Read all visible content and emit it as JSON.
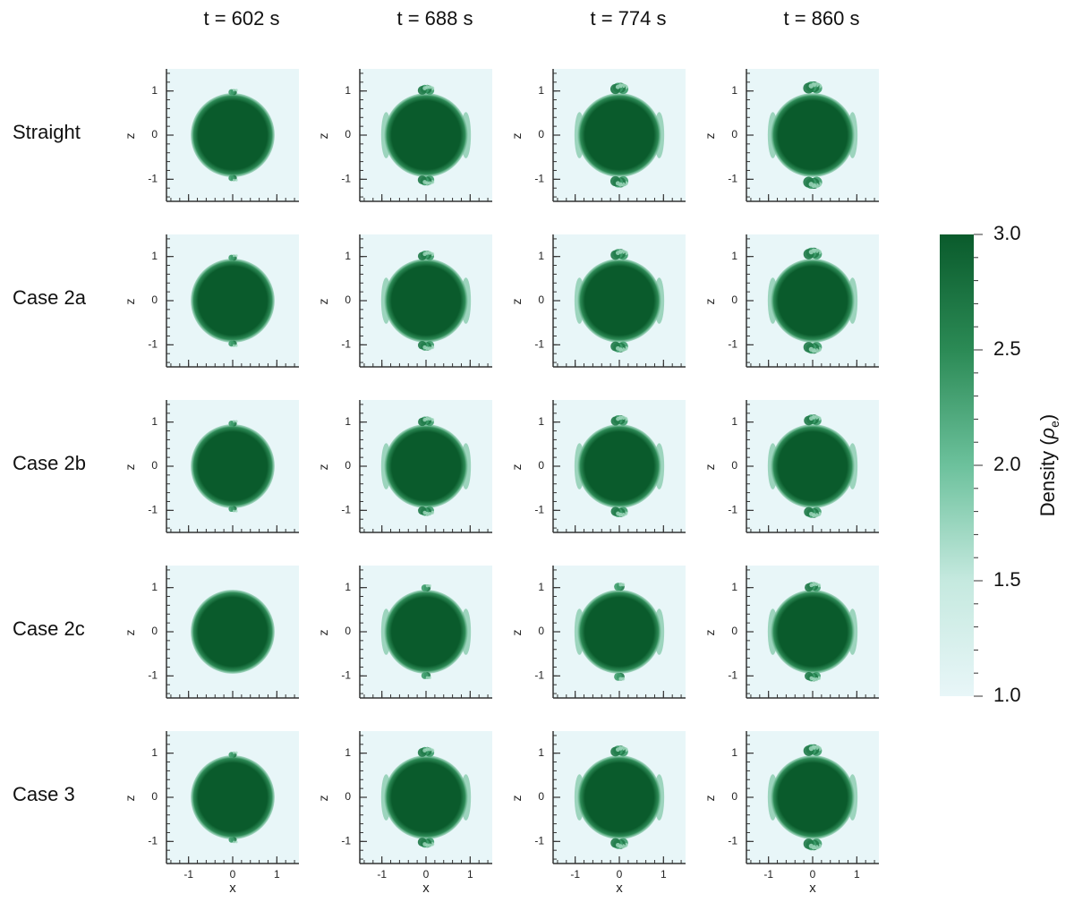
{
  "chart_data": {
    "type": "heatmap",
    "columns": [
      "t = 602 s",
      "t = 688 s",
      "t = 774 s",
      "t = 860 s"
    ],
    "rows": [
      "Straight",
      "Case 2a",
      "Case 2b",
      "Case 2c",
      "Case 3"
    ],
    "xlabel": "x",
    "ylabel": "z",
    "xlim": [
      -1.5,
      1.5
    ],
    "ylim": [
      -1.5,
      1.5
    ],
    "x_ticks": [
      "-1",
      "0",
      "1"
    ],
    "y_ticks": [
      "1",
      "0",
      "-1"
    ],
    "colorbar": {
      "label_main": "Density (",
      "label_sym": "ρ",
      "label_sub": "e",
      "label_end": ")",
      "min": 1.0,
      "max": 3.0,
      "ticks": [
        "3.0",
        "2.5",
        "2.0",
        "1.5",
        "1.0"
      ],
      "color_low": "#e8f6f8",
      "color_high": "#0a5b2c"
    },
    "tube_radius": 0.95,
    "core_density": 3.0,
    "background_density": 1.0,
    "perturbation": [
      [
        0.12,
        0.45,
        0.6,
        0.7
      ],
      [
        0.12,
        0.42,
        0.55,
        0.65
      ],
      [
        0.1,
        0.4,
        0.5,
        0.55
      ],
      [
        0.02,
        0.22,
        0.35,
        0.4
      ],
      [
        0.08,
        0.45,
        0.55,
        0.65
      ]
    ]
  }
}
